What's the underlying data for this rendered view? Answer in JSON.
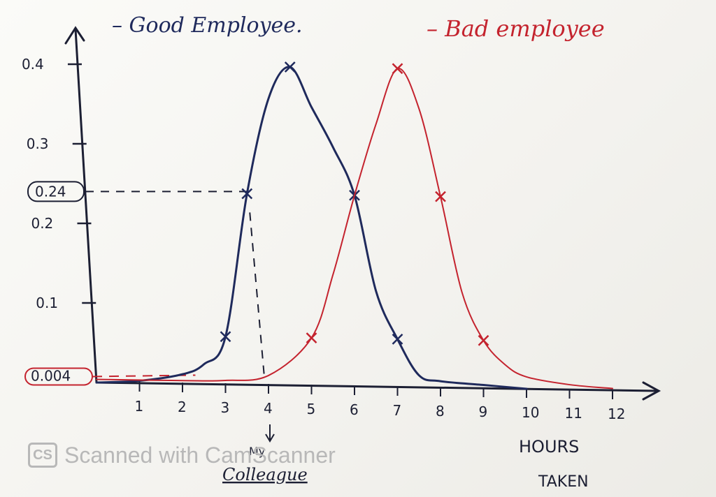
{
  "chart_data": {
    "type": "line",
    "title": "",
    "xlabel": "HOURS TAKEN",
    "ylabel": "",
    "xlim": [
      0,
      12.6
    ],
    "ylim": [
      0,
      0.44
    ],
    "x_ticks": [
      "1",
      "2",
      "3",
      "4",
      "5",
      "6",
      "7",
      "8",
      "9",
      "10",
      "11",
      "12"
    ],
    "y_ticks": [
      "0.1",
      "0.2",
      "0.3",
      "0.4"
    ],
    "series": [
      {
        "name": "Good Employee.",
        "color": "#1f2a5c",
        "points": [
          [
            0,
            0.0
          ],
          [
            1,
            0.003
          ],
          [
            2,
            0.012
          ],
          [
            2.5,
            0.025
          ],
          [
            3,
            0.06
          ],
          [
            3.5,
            0.24
          ],
          [
            4,
            0.36
          ],
          [
            4.5,
            0.4
          ],
          [
            5,
            0.35
          ],
          [
            5.5,
            0.3
          ],
          [
            6,
            0.24
          ],
          [
            6.5,
            0.12
          ],
          [
            7,
            0.06
          ],
          [
            7.5,
            0.015
          ],
          [
            8,
            0.008
          ],
          [
            9,
            0.004
          ],
          [
            10,
            0.0
          ]
        ],
        "markers_x": [
          3,
          3.5,
          4.5,
          6,
          7
        ]
      },
      {
        "name": "Bad employee",
        "color": "#c4232e",
        "points": [
          [
            0,
            0.004
          ],
          [
            2,
            0.004
          ],
          [
            3,
            0.005
          ],
          [
            4,
            0.012
          ],
          [
            5,
            0.06
          ],
          [
            5.5,
            0.14
          ],
          [
            6,
            0.24
          ],
          [
            6.5,
            0.33
          ],
          [
            7,
            0.4
          ],
          [
            7.5,
            0.35
          ],
          [
            8,
            0.24
          ],
          [
            8.5,
            0.12
          ],
          [
            9,
            0.06
          ],
          [
            9.5,
            0.03
          ],
          [
            10,
            0.015
          ],
          [
            11,
            0.006
          ],
          [
            12,
            0.002
          ]
        ],
        "markers_x": [
          5,
          7,
          8,
          9
        ]
      }
    ],
    "annotations": {
      "y_highlight": "0.24",
      "y_highlight_value": 0.24,
      "y_low": "0.004",
      "y_low_value": 0.004,
      "x_arrow_value": 4,
      "x_arrow_label_top": "My",
      "x_arrow_label": "Colleague"
    }
  },
  "legend": {
    "good": "– Good Employee.",
    "bad": "– Bad employee"
  },
  "xlabel_line1": "HOURS",
  "xlabel_line2": "TAKEN",
  "watermark": {
    "logo": "CS",
    "text": "Scanned with CamScanner"
  }
}
